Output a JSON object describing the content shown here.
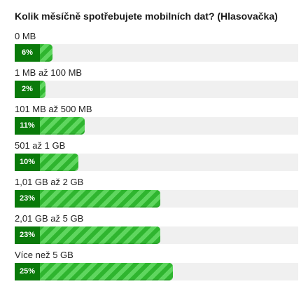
{
  "poll": {
    "question": "Kolik měsíčně spotřebujete mobilních dat? (Hlasovačka)",
    "accent_color": "#46c646",
    "badge_color": "#0a7a0a",
    "options": [
      {
        "label": "0 MB",
        "percent_text": "6%",
        "percent": 6
      },
      {
        "label": "1 MB až 100 MB",
        "percent_text": "2%",
        "percent": 2
      },
      {
        "label": "101 MB až 500 MB",
        "percent_text": "11%",
        "percent": 11
      },
      {
        "label": "501 až 1 GB",
        "percent_text": "10%",
        "percent": 10
      },
      {
        "label": "1,01 GB až 2 GB",
        "percent_text": "23%",
        "percent": 23
      },
      {
        "label": "2,01 GB až 5 GB",
        "percent_text": "23%",
        "percent": 23
      },
      {
        "label": "Více než 5 GB",
        "percent_text": "25%",
        "percent": 25
      }
    ]
  }
}
